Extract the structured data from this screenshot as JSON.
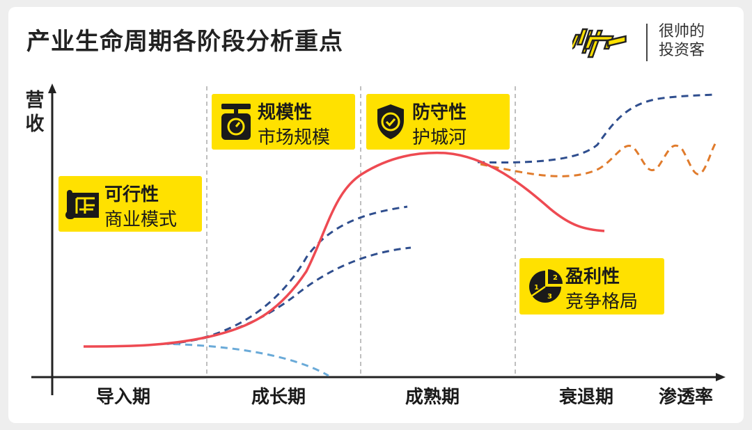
{
  "title": "产业生命周期各阶段分析重点",
  "brand": {
    "line1": "很帅的",
    "line2": "投资客",
    "logo_icon": "shuai-logo-icon"
  },
  "axes": {
    "y_label": "营收",
    "x_label": "渗透率"
  },
  "phases": [
    "导入期",
    "成长期",
    "成熟期",
    "衰退期"
  ],
  "boxes": {
    "feasibility": {
      "title": "可行性",
      "subtitle": "商业模式",
      "icon": "blueprint-icon"
    },
    "scale": {
      "title": "规模性",
      "subtitle": "市场规模",
      "icon": "scale-icon"
    },
    "defense": {
      "title": "防守性",
      "subtitle": "护城河",
      "icon": "shield-check-icon"
    },
    "profit": {
      "title": "盈利性",
      "subtitle": "竞争格局",
      "icon": "pie-ranking-icon"
    }
  },
  "colors": {
    "accent": "#ffe100",
    "main_curve": "#ee4a52",
    "dark_dash": "#2f4e8e",
    "light_dash": "#6aaad8",
    "orange_dash": "#e07b2c",
    "divider": "#aaaaaa"
  }
}
